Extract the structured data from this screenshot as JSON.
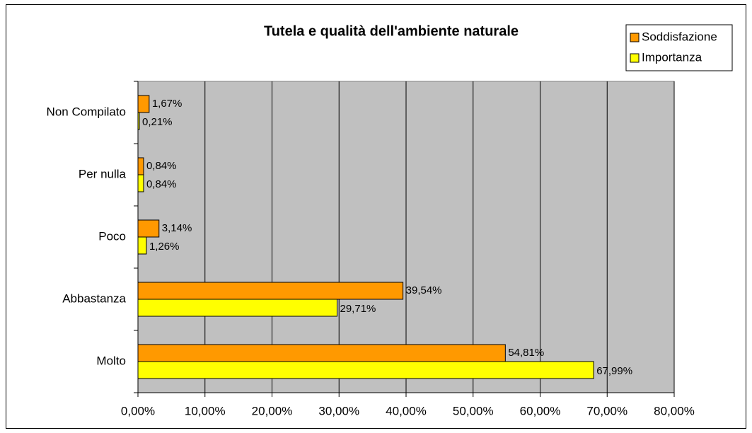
{
  "chart_data": {
    "type": "hbar",
    "title": "Tutela e qualità dell'ambiente naturale",
    "categories": [
      "Non Compilato",
      "Per nulla",
      "Poco",
      "Abbastanza",
      "Molto"
    ],
    "series": [
      {
        "name": "Soddisfazione",
        "color": "#ff9900",
        "values": [
          1.67,
          0.84,
          3.14,
          39.54,
          54.81
        ],
        "value_labels": [
          "1,67%",
          "0,84%",
          "3,14%",
          "39,54%",
          "54,81%"
        ]
      },
      {
        "name": "Importanza",
        "color": "#ffff00",
        "values": [
          0.21,
          0.84,
          1.26,
          29.71,
          67.99
        ],
        "value_labels": [
          "0,21%",
          "0,84%",
          "1,26%",
          "29,71%",
          "67,99%"
        ]
      }
    ],
    "xlim": [
      0,
      80
    ],
    "xticks": [
      {
        "value": 0,
        "label": "0,00%"
      },
      {
        "value": 10,
        "label": "10,00%"
      },
      {
        "value": 20,
        "label": "20,00%"
      },
      {
        "value": 30,
        "label": "30,00%"
      },
      {
        "value": 40,
        "label": "40,00%"
      },
      {
        "value": 50,
        "label": "50,00%"
      },
      {
        "value": 60,
        "label": "60,00%"
      },
      {
        "value": 70,
        "label": "70,00%"
      },
      {
        "value": 80,
        "label": "80,00%"
      }
    ],
    "grid": true,
    "legend": "top-right",
    "plot_background": "#c0c0c0"
  }
}
